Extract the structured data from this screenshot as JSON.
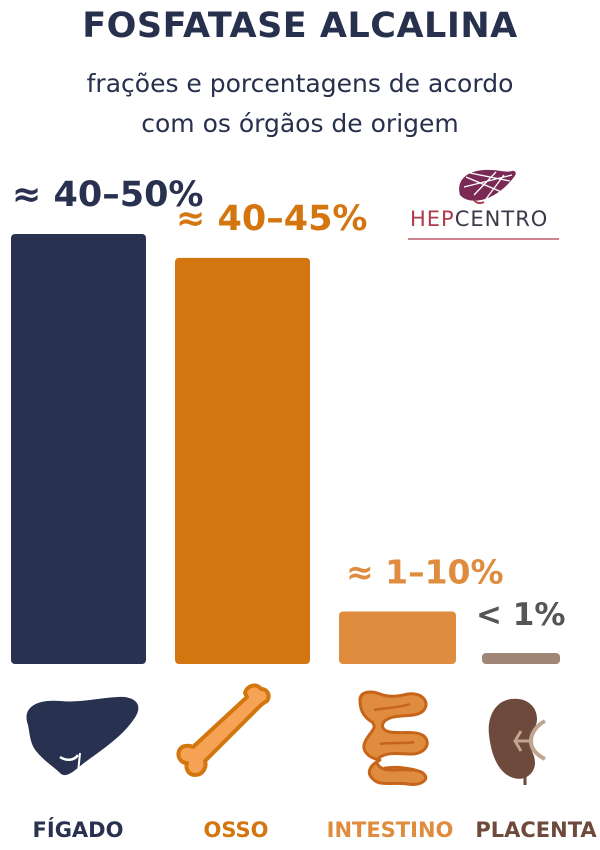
{
  "header": {
    "title": "FOSFATASE ALCALINA",
    "subtitle_line1": "frações e porcentagens de acordo",
    "subtitle_line2": "com os órgãos de origem"
  },
  "logo": {
    "text_part1": "HEP",
    "text_part2": "CENTRO"
  },
  "colors": {
    "figado": "#293150",
    "osso": "#d4760f",
    "intestino": "#df8c3e",
    "placenta": "#a08676",
    "title": "#27304d"
  },
  "chart_data": {
    "type": "bar",
    "categories": [
      "FÍGADO",
      "OSSO",
      "INTESTINO",
      "PLACENTA"
    ],
    "value_labels": [
      "≈ 40–50%",
      "≈ 40–45%",
      "≈ 1–10%",
      "< 1%"
    ],
    "values": [
      45,
      42.5,
      5.5,
      1
    ],
    "ylim": [
      0,
      45
    ],
    "icons": [
      "liver-icon",
      "bone-icon",
      "intestine-icon",
      "kidney-icon"
    ]
  }
}
